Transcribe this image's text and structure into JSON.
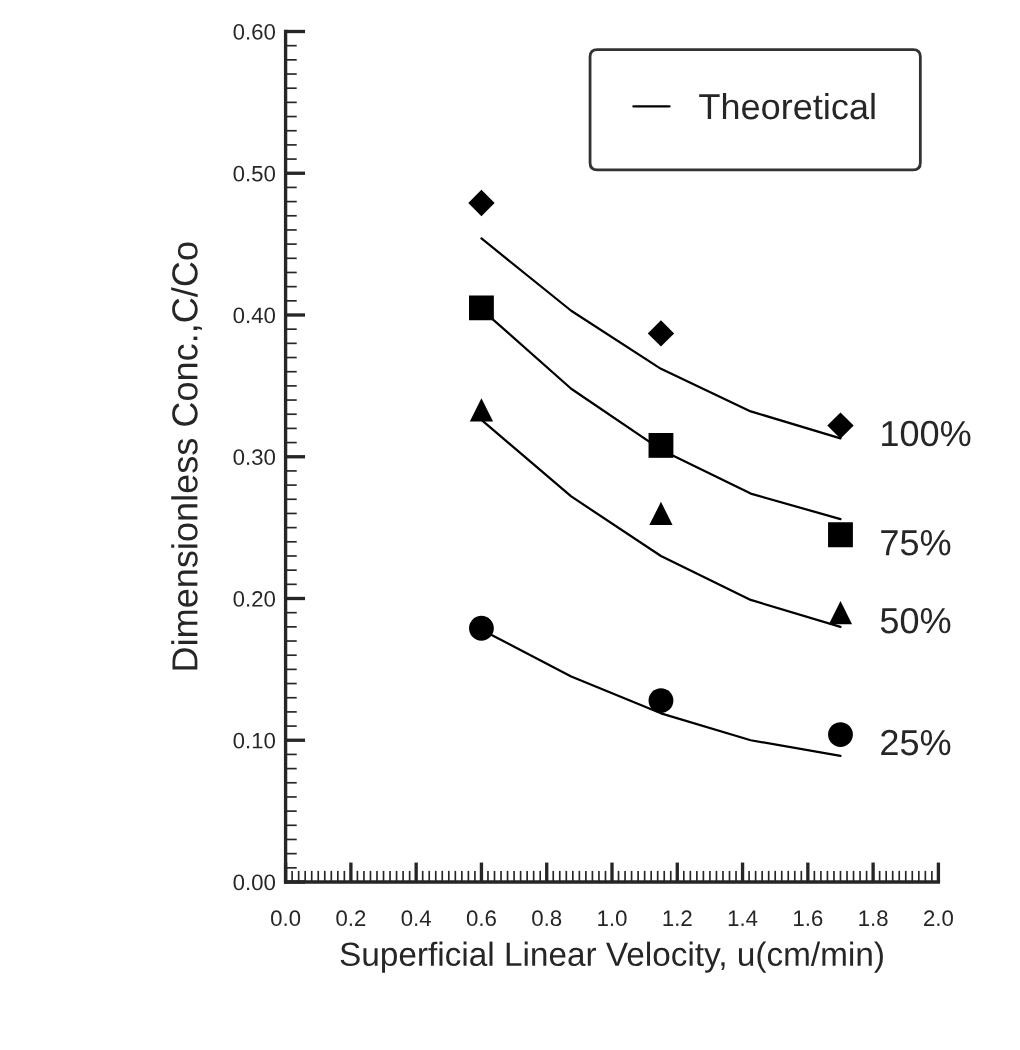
{
  "chart_data": {
    "type": "scatter",
    "xlabel": "Superficial Linear Velocity, u(cm/min)",
    "ylabel": "Dimensionless Conc.,C/Co",
    "xlim": [
      0,
      2.0
    ],
    "ylim": [
      0,
      0.6
    ],
    "xticks": [
      {
        "value": 0,
        "label": "0.0"
      },
      {
        "value": 0.2,
        "label": "0.2"
      },
      {
        "value": 0.4,
        "label": "0.4"
      },
      {
        "value": 0.6,
        "label": "0.6"
      },
      {
        "value": 0.8,
        "label": "0.8"
      },
      {
        "value": 1.0,
        "label": "1.0"
      },
      {
        "value": 1.2,
        "label": "1.2"
      },
      {
        "value": 1.4,
        "label": "1.4"
      },
      {
        "value": 1.6,
        "label": "1.6"
      },
      {
        "value": 1.8,
        "label": "1.8"
      },
      {
        "value": 2.0,
        "label": "2.0"
      }
    ],
    "yticks": [
      {
        "value": 0,
        "label": "0.00"
      },
      {
        "value": 0.1,
        "label": "0.10"
      },
      {
        "value": 0.2,
        "label": "0.20"
      },
      {
        "value": 0.3,
        "label": "0.30"
      },
      {
        "value": 0.4,
        "label": "0.40"
      },
      {
        "value": 0.5,
        "label": "0.50"
      },
      {
        "value": 0.6,
        "label": "0.60"
      }
    ],
    "grid": false,
    "legend": "top right",
    "series": [
      {
        "name": "100%",
        "marker": "diamond",
        "color": "#000000",
        "x": [
          0.6,
          1.15,
          1.7
        ],
        "values": [
          0.479,
          0.387,
          0.322
        ]
      },
      {
        "name": "75%",
        "marker": "square",
        "color": "#000000",
        "x": [
          0.6,
          1.15,
          1.7
        ],
        "values": [
          0.405,
          0.308,
          0.245
        ]
      },
      {
        "name": "50%",
        "marker": "triangle",
        "color": "#000000",
        "x": [
          0.6,
          1.15,
          1.7
        ],
        "values": [
          0.333,
          0.26,
          0.19
        ]
      },
      {
        "name": "25%",
        "marker": "circle",
        "color": "#000000",
        "x": [
          0.6,
          1.15,
          1.7
        ],
        "values": [
          0.179,
          0.128,
          0.104
        ]
      },
      {
        "name": "Theoretical",
        "type": "line",
        "color": "#000000",
        "x": [
          0.6,
          0.875,
          1.15,
          1.425,
          1.7
        ],
        "values": [
          0.454,
          0.403,
          0.362,
          0.332,
          0.313
        ]
      },
      {
        "type": "line",
        "color": "#000000",
        "x": [
          0.6,
          0.875,
          1.15,
          1.425,
          1.7
        ],
        "values": [
          0.404,
          0.348,
          0.305,
          0.274,
          0.256
        ]
      },
      {
        "type": "line",
        "color": "#000000",
        "x": [
          0.6,
          0.875,
          1.15,
          1.425,
          1.7
        ],
        "values": [
          0.326,
          0.272,
          0.23,
          0.199,
          0.18
        ]
      },
      {
        "type": "line",
        "color": "#000000",
        "x": [
          0.6,
          0.875,
          1.15,
          1.425,
          1.7
        ],
        "values": [
          0.178,
          0.145,
          0.119,
          0.1,
          0.089
        ]
      }
    ]
  }
}
